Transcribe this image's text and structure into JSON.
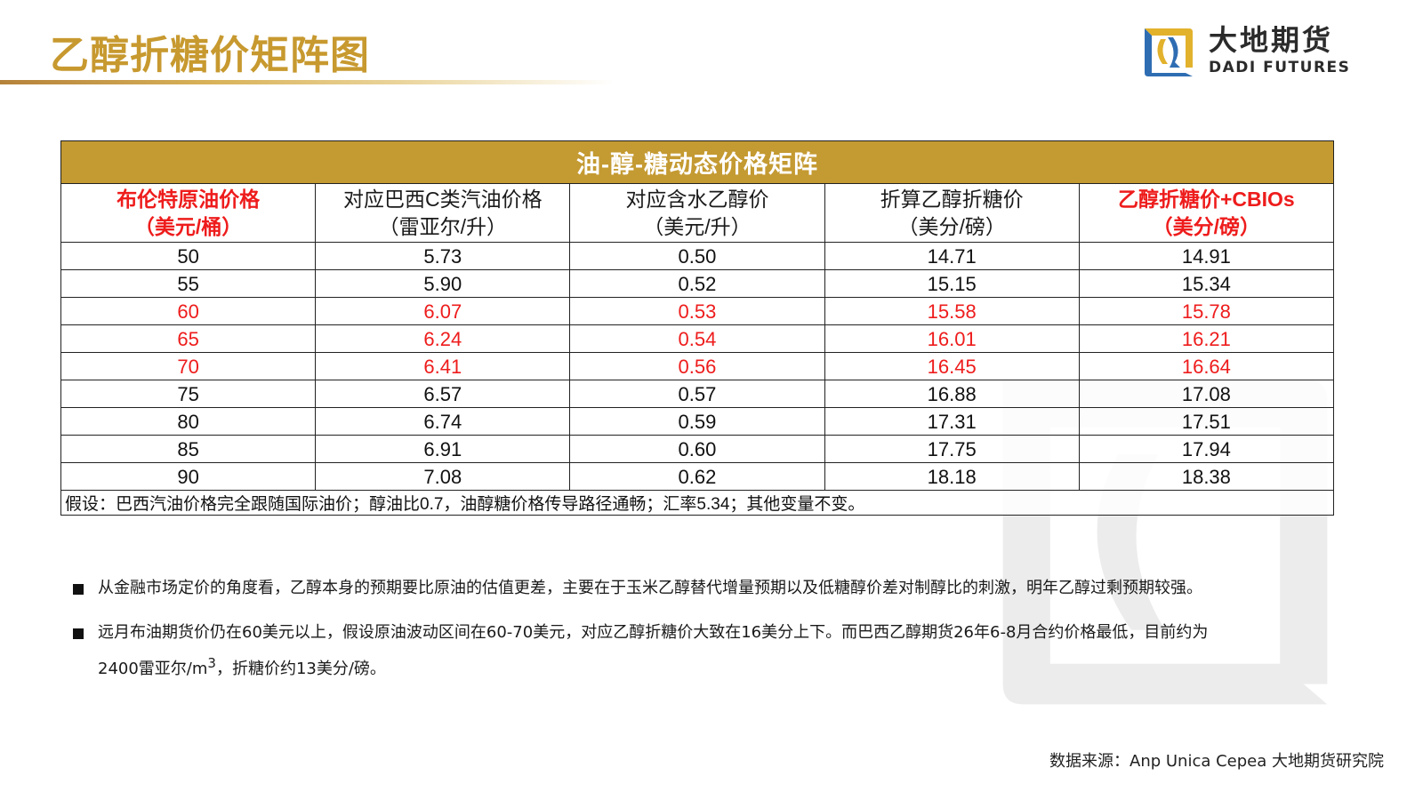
{
  "header": {
    "title": "乙醇折糖价矩阵图",
    "logo_cn": "大地期货",
    "logo_en": "DADI FUTURES"
  },
  "colors": {
    "gold": "#c49a32",
    "title_gold": "#c7992f",
    "highlight_red": "#ee1c1c",
    "logo_blue": "#2f6db3",
    "logo_yellow": "#e2b22c"
  },
  "table": {
    "banner": "油-醇-糖动态价格矩阵",
    "columns": [
      {
        "line1": "布伦特原油价格",
        "line2": "（美元/桶）",
        "highlight": true
      },
      {
        "line1": "对应巴西C类汽油价格",
        "line2": "（雷亚尔/升）",
        "highlight": false
      },
      {
        "line1": "对应含水乙醇价",
        "line2": "（美元/升）",
        "highlight": false
      },
      {
        "line1": "折算乙醇折糖价",
        "line2": "（美分/磅）",
        "highlight": false
      },
      {
        "line1": "乙醇折糖价+CBIOs",
        "line2": "（美分/磅）",
        "highlight": true
      }
    ],
    "rows": [
      {
        "brent": "50",
        "gasoline": "5.73",
        "ethanol": "0.50",
        "sugar_eq": "14.71",
        "sugar_cbios": "14.91",
        "highlight": false
      },
      {
        "brent": "55",
        "gasoline": "5.90",
        "ethanol": "0.52",
        "sugar_eq": "15.15",
        "sugar_cbios": "15.34",
        "highlight": false
      },
      {
        "brent": "60",
        "gasoline": "6.07",
        "ethanol": "0.53",
        "sugar_eq": "15.58",
        "sugar_cbios": "15.78",
        "highlight": true
      },
      {
        "brent": "65",
        "gasoline": "6.24",
        "ethanol": "0.54",
        "sugar_eq": "16.01",
        "sugar_cbios": "16.21",
        "highlight": true
      },
      {
        "brent": "70",
        "gasoline": "6.41",
        "ethanol": "0.56",
        "sugar_eq": "16.45",
        "sugar_cbios": "16.64",
        "highlight": true
      },
      {
        "brent": "75",
        "gasoline": "6.57",
        "ethanol": "0.57",
        "sugar_eq": "16.88",
        "sugar_cbios": "17.08",
        "highlight": false
      },
      {
        "brent": "80",
        "gasoline": "6.74",
        "ethanol": "0.59",
        "sugar_eq": "17.31",
        "sugar_cbios": "17.51",
        "highlight": false
      },
      {
        "brent": "85",
        "gasoline": "6.91",
        "ethanol": "0.60",
        "sugar_eq": "17.75",
        "sugar_cbios": "17.94",
        "highlight": false
      },
      {
        "brent": "90",
        "gasoline": "7.08",
        "ethanol": "0.62",
        "sugar_eq": "18.18",
        "sugar_cbios": "18.38",
        "highlight": false
      }
    ],
    "note": "假设：巴西汽油价格完全跟随国际油价；醇油比0.7，油醇糖价格传导路径通畅；汇率5.34；其他变量不变。"
  },
  "bullets": [
    {
      "text": "从金融市场定价的角度看，乙醇本身的预期要比原油的估值更差，主要在于玉米乙醇替代增量预期以及低糖醇价差对制醇比的刺激，明年乙醇过剩预期较强。"
    },
    {
      "text_a": "远月布油期货价仍在60美元以上，假设原油波动区间在60-70美元，对应乙醇折糖价大致在16美分上下。而巴西乙醇期货26年6-8月合约价格最低，目前约为",
      "text_b": "2400雷亚尔/m",
      "sup": "3",
      "text_c": "，折糖价约13美分/磅。"
    }
  ],
  "footer": {
    "source": "数据来源：Anp Unica Cepea 大地期货研究院"
  }
}
